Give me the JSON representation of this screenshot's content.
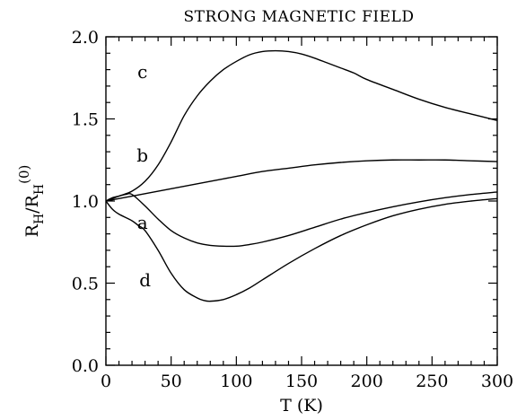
{
  "chart_data": {
    "type": "line",
    "title": "STRONG MAGNETIC FIELD",
    "xlabel": "T (K)",
    "ylabel_parts": {
      "r1": "R",
      "sub1": "H",
      "slash": "/",
      "r2": "R",
      "sub2": "H",
      "sup": "(0)"
    },
    "xlim": [
      0,
      300
    ],
    "ylim": [
      0,
      2.0
    ],
    "x_major_ticks": [
      0,
      50,
      100,
      150,
      200,
      250,
      300
    ],
    "x_tick_labels": [
      "0",
      "50",
      "100",
      "150",
      "200",
      "250",
      "300"
    ],
    "x_minor_step": 10,
    "y_major_ticks": [
      0,
      0.5,
      1.0,
      1.5,
      2.0
    ],
    "y_tick_labels": [
      "0.0",
      "0.5",
      "1.0",
      "1.5",
      "2.0"
    ],
    "y_minor_step": 0.1,
    "grid": false,
    "series": [
      {
        "name": "c",
        "label_at": [
          28,
          1.75
        ],
        "x": [
          0,
          10,
          20,
          30,
          40,
          50,
          60,
          70,
          80,
          90,
          100,
          110,
          120,
          130,
          140,
          150,
          160,
          170,
          180,
          190,
          200,
          220,
          240,
          260,
          280,
          300
        ],
        "y": [
          1.0,
          1.03,
          1.06,
          1.12,
          1.22,
          1.36,
          1.52,
          1.64,
          1.73,
          1.8,
          1.85,
          1.89,
          1.91,
          1.915,
          1.91,
          1.895,
          1.87,
          1.84,
          1.81,
          1.78,
          1.74,
          1.68,
          1.62,
          1.57,
          1.53,
          1.49
        ]
      },
      {
        "name": "b",
        "label_at": [
          28,
          1.24
        ],
        "x": [
          0,
          20,
          40,
          60,
          80,
          100,
          120,
          140,
          160,
          180,
          200,
          220,
          240,
          260,
          280,
          300
        ],
        "y": [
          1.0,
          1.03,
          1.06,
          1.09,
          1.12,
          1.15,
          1.18,
          1.2,
          1.22,
          1.235,
          1.245,
          1.25,
          1.25,
          1.25,
          1.245,
          1.24
        ]
      },
      {
        "name": "a",
        "label_at": [
          28,
          0.83
        ],
        "x": [
          0,
          5,
          10,
          15,
          20,
          30,
          40,
          50,
          60,
          70,
          80,
          90,
          100,
          110,
          120,
          140,
          160,
          180,
          200,
          220,
          240,
          260,
          280,
          300
        ],
        "y": [
          1.0,
          1.02,
          1.03,
          1.04,
          1.04,
          0.97,
          0.89,
          0.82,
          0.775,
          0.745,
          0.73,
          0.725,
          0.725,
          0.735,
          0.75,
          0.79,
          0.84,
          0.89,
          0.93,
          0.965,
          0.995,
          1.02,
          1.04,
          1.055
        ]
      },
      {
        "name": "d",
        "label_at": [
          30,
          0.48
        ],
        "x": [
          0,
          5,
          10,
          20,
          25,
          30,
          40,
          50,
          60,
          70,
          75,
          80,
          90,
          100,
          110,
          120,
          140,
          160,
          180,
          200,
          220,
          240,
          260,
          280,
          300
        ],
        "y": [
          1.0,
          0.95,
          0.92,
          0.88,
          0.85,
          0.82,
          0.7,
          0.56,
          0.46,
          0.41,
          0.395,
          0.39,
          0.4,
          0.43,
          0.47,
          0.52,
          0.62,
          0.71,
          0.79,
          0.855,
          0.91,
          0.95,
          0.98,
          1.0,
          1.015
        ]
      }
    ]
  }
}
